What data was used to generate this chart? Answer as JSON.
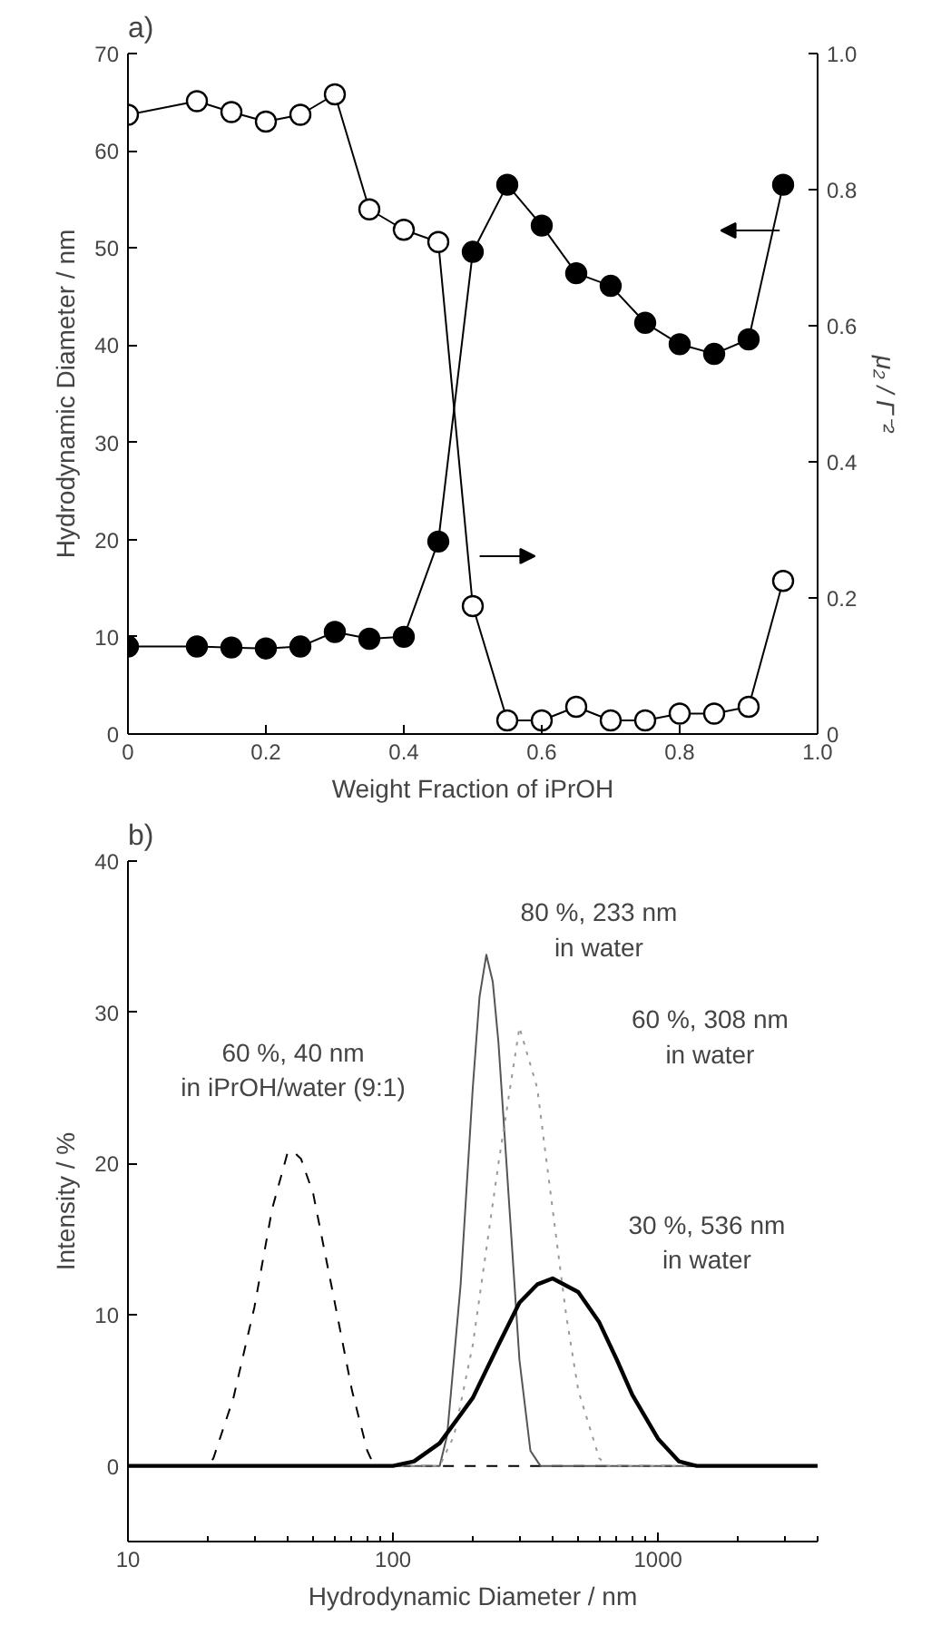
{
  "chart_data": [
    {
      "type": "line",
      "title": "a)",
      "xlabel": "Weight Fraction of iPrOH",
      "ylabel": "Hydrodynamic Diameter / nm",
      "y2label": "μ₂ / Γ⁻²",
      "x": [
        0,
        0.1,
        0.15,
        0.2,
        0.25,
        0.3,
        0.35,
        0.4,
        0.45,
        0.5,
        0.55,
        0.6,
        0.65,
        0.7,
        0.75,
        0.8,
        0.85,
        0.9,
        0.95
      ],
      "series": [
        {
          "color": "#000000",
          "values": [
            9,
            9,
            8.9,
            8.8,
            9,
            10.5,
            9.8,
            10,
            19.8,
            49.6,
            56.5,
            52.3,
            47.4,
            46.1,
            42.3,
            40.1,
            39.1,
            40.6,
            56.5
          ]
        },
        {
          "color": "#ffffff",
          "axis": "y2",
          "values": [
            0.91,
            0.93,
            0.914,
            0.9,
            0.91,
            0.94,
            0.771,
            0.741,
            0.723,
            0.188,
            0.02,
            0.02,
            0.04,
            0.02,
            0.02,
            0.03,
            0.03,
            0.04,
            0.225
          ]
        }
      ],
      "marker": "circle",
      "line_style": "solid",
      "grid": false,
      "xlim": [
        0,
        1
      ],
      "xticks": [
        0,
        0.2,
        0.4,
        0.6,
        0.8,
        {
          "value": 1,
          "label": "1.0"
        }
      ],
      "ylim": [
        0,
        70
      ],
      "yticks": [
        0,
        10,
        20,
        30,
        40,
        50,
        60,
        70
      ],
      "y2lim": [
        0,
        1
      ],
      "y2ticks": [
        0,
        0.2,
        0.4,
        0.6,
        0.8,
        {
          "value": 1,
          "label": "1.0"
        }
      ]
    },
    {
      "type": "line",
      "title": "b)",
      "xlabel": "Hydrodynamic Diameter / nm",
      "ylabel": "Intensity / %",
      "log": "x",
      "grid": false,
      "marker": "none",
      "series": [
        {
          "color": "#000000",
          "line_style": "dashed",
          "x": [
            10,
            20,
            21,
            25,
            30,
            35,
            40,
            42,
            45,
            50,
            60,
            70,
            80,
            85,
            4000
          ],
          "values": [
            0,
            0,
            0.5,
            4.5,
            10.5,
            17,
            20.7,
            20.8,
            20.3,
            18,
            11,
            5,
            1,
            0,
            0
          ]
        },
        {
          "color": "#555555",
          "line_style": "solid",
          "x": [
            10,
            150,
            160,
            180,
            200,
            212,
            225,
            238,
            250,
            280,
            300,
            330,
            360,
            4000
          ],
          "values": [
            0,
            0,
            2,
            12,
            25,
            31,
            33.8,
            32,
            28,
            15,
            7,
            1,
            0,
            0
          ]
        },
        {
          "color": "#999999",
          "line_style": "dotted",
          "x": [
            10,
            150,
            170,
            200,
            250,
            300,
            350,
            400,
            450,
            500,
            600,
            650,
            4000
          ],
          "values": [
            0,
            0,
            2,
            8,
            20,
            29,
            25,
            17,
            10,
            5,
            0.5,
            0,
            0
          ]
        },
        {
          "color": "#000000",
          "line_style": "solid",
          "x": [
            10,
            100,
            120,
            150,
            200,
            250,
            300,
            350,
            400,
            500,
            600,
            700,
            800,
            1000,
            1200,
            1400,
            4000
          ],
          "values": [
            0,
            0,
            0.3,
            1.5,
            4.5,
            8,
            10.8,
            12,
            12.4,
            11.5,
            9.5,
            7,
            4.7,
            1.8,
            0.3,
            0,
            0
          ]
        }
      ],
      "annotations": [
        "60 %, 40 nm\nin iPrOH/water (9:1)",
        "80 %, 233 nm\nin water",
        "60 %, 308 nm\nin water",
        "30 %, 536 nm\nin water"
      ],
      "xlim": [
        10,
        4000
      ],
      "xticks": [
        10,
        100,
        1000
      ],
      "ylim": [
        -5,
        40
      ],
      "yticks": [
        0,
        10,
        20,
        30,
        40
      ]
    }
  ]
}
